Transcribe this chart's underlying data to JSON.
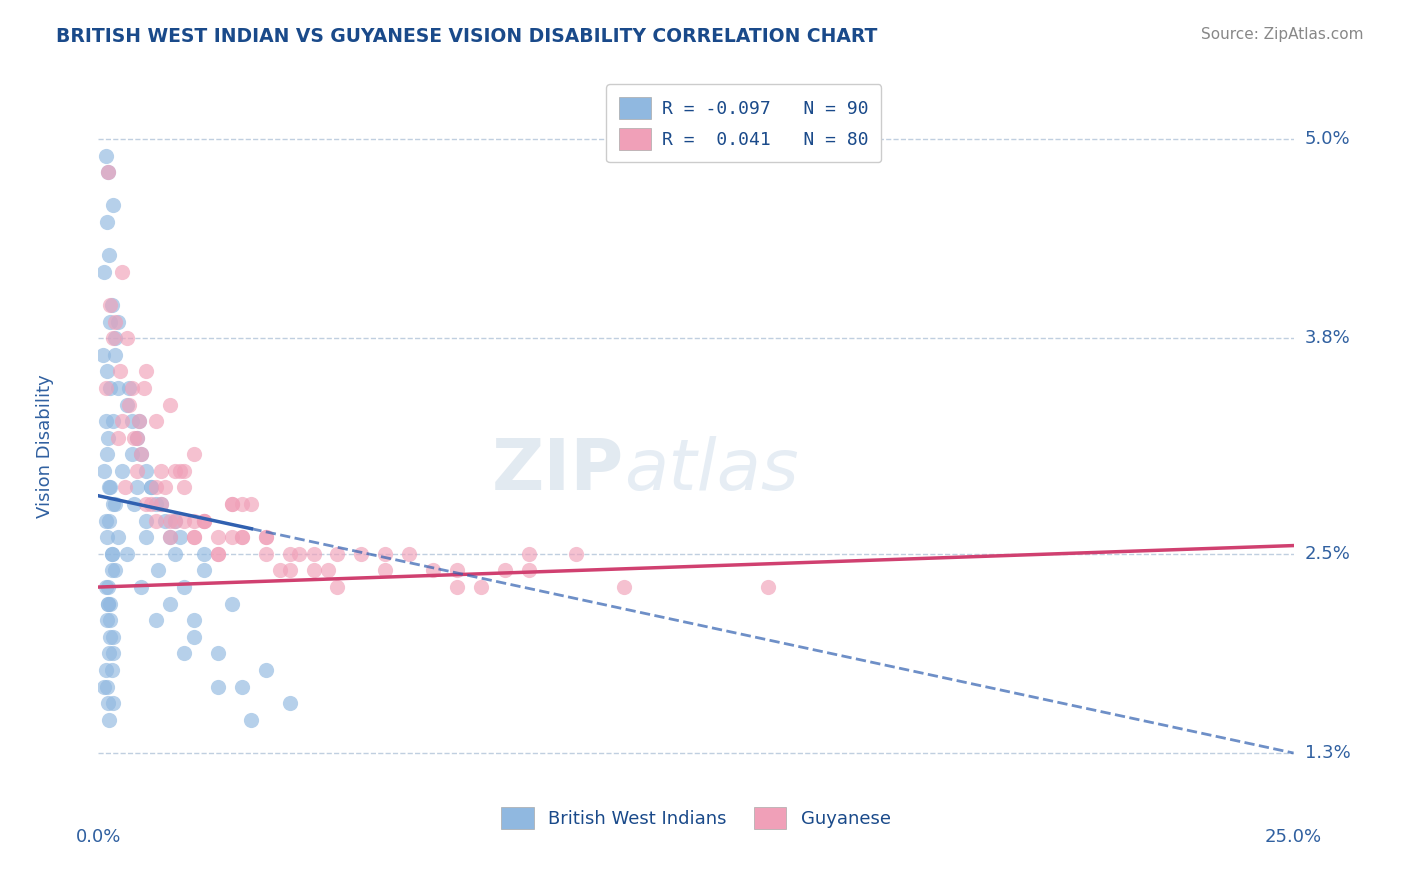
{
  "title": "BRITISH WEST INDIAN VS GUYANESE VISION DISABILITY CORRELATION CHART",
  "source": "Source: ZipAtlas.com",
  "ylabel": "Vision Disability",
  "y_ticks": [
    1.3,
    2.5,
    3.8,
    5.0
  ],
  "y_tick_labels": [
    "1.3%",
    "2.5%",
    "3.8%",
    "5.0%"
  ],
  "x_min": 0.0,
  "x_max": 25.0,
  "y_min": 1.0,
  "y_max": 5.3,
  "series1_color": "#90b8e0",
  "series2_color": "#f0a0b8",
  "series1_line_color": "#3060b0",
  "series2_line_color": "#d04070",
  "watermark": "ZIPatlas",
  "grid_color": "#c0cfe0",
  "background_color": "#ffffff",
  "title_color": "#1a4a8a",
  "axis_label_color": "#3060a0",
  "legend1_r": "-0.097",
  "legend1_n": "90",
  "legend2_r": "0.041",
  "legend2_n": "80",
  "scatter1_x": [
    0.15,
    0.18,
    0.12,
    0.2,
    0.25,
    0.3,
    0.1,
    0.22,
    0.28,
    0.35,
    0.18,
    0.4,
    0.15,
    0.2,
    0.12,
    0.25,
    0.3,
    0.22,
    0.18,
    0.28,
    0.35,
    0.15,
    0.2,
    0.25,
    0.18,
    0.3,
    0.22,
    0.28,
    0.12,
    0.2,
    0.4,
    0.35,
    0.25,
    0.3,
    0.18,
    0.22,
    0.15,
    0.28,
    0.2,
    0.25,
    0.3,
    0.18,
    0.22,
    0.35,
    0.4,
    0.28,
    0.2,
    0.25,
    0.15,
    0.3,
    0.6,
    0.8,
    1.0,
    1.2,
    1.5,
    0.7,
    0.9,
    1.1,
    0.65,
    0.85,
    1.4,
    1.6,
    1.8,
    2.0,
    2.5,
    3.0,
    1.3,
    1.7,
    2.2,
    2.8,
    0.5,
    0.75,
    1.0,
    1.25,
    1.5,
    2.0,
    3.5,
    4.0,
    0.8,
    1.0,
    0.6,
    0.9,
    1.2,
    1.8,
    2.5,
    3.2,
    0.7,
    1.1,
    1.6,
    2.2
  ],
  "scatter1_y": [
    4.9,
    4.5,
    4.2,
    4.8,
    3.9,
    4.6,
    3.7,
    4.3,
    4.0,
    3.8,
    3.6,
    3.5,
    3.3,
    3.2,
    3.0,
    2.9,
    2.8,
    2.7,
    2.6,
    2.5,
    2.4,
    2.3,
    2.2,
    2.2,
    2.1,
    2.0,
    1.9,
    1.8,
    1.7,
    1.6,
    3.9,
    3.7,
    3.5,
    3.3,
    3.1,
    2.9,
    2.7,
    2.5,
    2.3,
    2.1,
    1.9,
    1.7,
    1.5,
    2.8,
    2.6,
    2.4,
    2.2,
    2.0,
    1.8,
    1.6,
    3.4,
    3.2,
    3.0,
    2.8,
    2.6,
    3.3,
    3.1,
    2.9,
    3.5,
    3.3,
    2.7,
    2.5,
    2.3,
    2.1,
    1.9,
    1.7,
    2.8,
    2.6,
    2.4,
    2.2,
    3.0,
    2.8,
    2.6,
    2.4,
    2.2,
    2.0,
    1.8,
    1.6,
    2.9,
    2.7,
    2.5,
    2.3,
    2.1,
    1.9,
    1.7,
    1.5,
    3.1,
    2.9,
    2.7,
    2.5
  ],
  "scatter2_x": [
    0.2,
    0.35,
    0.5,
    0.15,
    0.6,
    0.8,
    0.25,
    1.0,
    0.4,
    0.7,
    1.2,
    0.3,
    0.9,
    1.5,
    0.55,
    0.75,
    1.8,
    0.45,
    2.0,
    0.65,
    1.1,
    0.85,
    2.5,
    1.3,
    3.0,
    0.95,
    1.6,
    2.2,
    0.5,
    1.4,
    3.5,
    1.7,
    2.8,
    4.0,
    1.2,
    2.0,
    0.8,
    3.2,
    1.5,
    2.5,
    4.5,
    1.8,
    3.0,
    5.0,
    2.2,
    6.0,
    2.8,
    7.0,
    3.5,
    8.0,
    1.0,
    4.2,
    1.5,
    9.0,
    2.0,
    5.5,
    1.3,
    3.8,
    1.8,
    6.5,
    2.5,
    4.8,
    1.2,
    7.5,
    2.0,
    5.0,
    1.6,
    8.5,
    2.8,
    4.0,
    11.0,
    3.5,
    6.0,
    2.2,
    9.0,
    14.0,
    4.5,
    7.5,
    3.0,
    10.0
  ],
  "scatter2_y": [
    4.8,
    3.9,
    4.2,
    3.5,
    3.8,
    3.0,
    4.0,
    3.6,
    3.2,
    3.5,
    3.3,
    3.8,
    3.1,
    3.4,
    2.9,
    3.2,
    3.0,
    3.6,
    3.1,
    3.4,
    2.8,
    3.3,
    2.5,
    3.0,
    2.8,
    3.5,
    3.0,
    2.7,
    3.3,
    2.9,
    2.5,
    3.0,
    2.8,
    2.4,
    2.9,
    2.7,
    3.2,
    2.8,
    2.6,
    2.5,
    2.4,
    2.9,
    2.6,
    2.3,
    2.7,
    2.5,
    2.8,
    2.4,
    2.6,
    2.3,
    2.8,
    2.5,
    2.7,
    2.4,
    2.6,
    2.5,
    2.8,
    2.4,
    2.7,
    2.5,
    2.6,
    2.4,
    2.7,
    2.3,
    2.6,
    2.5,
    2.7,
    2.4,
    2.6,
    2.5,
    2.3,
    2.6,
    2.4,
    2.7,
    2.5,
    2.3,
    2.5,
    2.4,
    2.6,
    2.5
  ],
  "trend1_x0": 0.0,
  "trend1_y0": 2.85,
  "trend1_x1": 25.0,
  "trend1_y1": 1.3,
  "trend2_x0": 0.0,
  "trend2_y0": 2.3,
  "trend2_x1": 25.0,
  "trend2_y1": 2.55
}
